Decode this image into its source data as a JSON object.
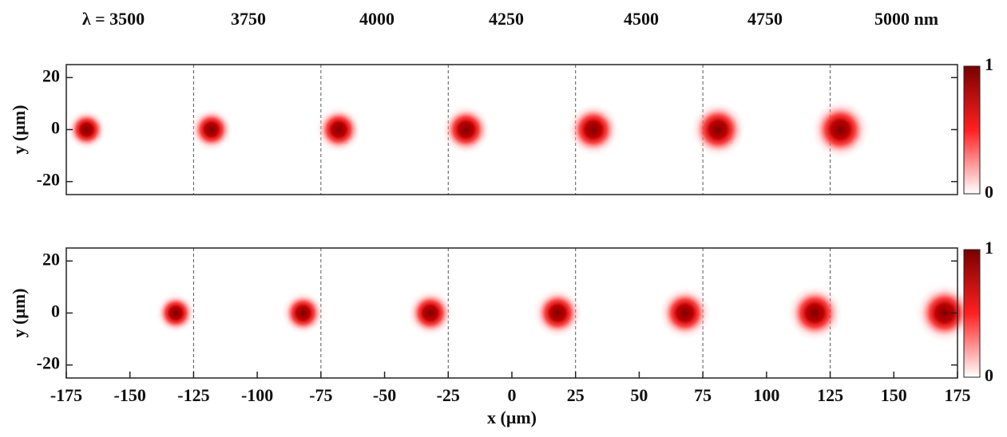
{
  "header": {
    "labels": [
      "λ  =  3500",
      "3750",
      "4000",
      "4250",
      "4500",
      "4750",
      "5000  nm"
    ]
  },
  "chart_data": [
    {
      "type": "scatter",
      "ylabel": "y (μm)",
      "xlim": [
        -175,
        175
      ],
      "ylim": [
        -25,
        25
      ],
      "yticks": [
        -20,
        0,
        20
      ],
      "dividers": [
        -125,
        -75,
        -25,
        25,
        75,
        125
      ],
      "series": [
        {
          "x": [
            -167,
            -118,
            -68,
            -18,
            32,
            81,
            129
          ],
          "y": [
            0,
            0,
            0,
            0,
            0,
            0,
            0
          ],
          "color": "#c00000"
        }
      ],
      "clim": [
        0,
        1
      ],
      "cticks": [
        0,
        1
      ],
      "colormap": [
        "#ffffff",
        "#ff2020",
        "#7a0000"
      ]
    },
    {
      "type": "scatter",
      "ylabel": "y (μm)",
      "xlabel": "x (μm)",
      "xlim": [
        -175,
        175
      ],
      "ylim": [
        -25,
        25
      ],
      "yticks": [
        -20,
        0,
        20
      ],
      "xticks": [
        -175,
        -150,
        -125,
        -100,
        -75,
        -50,
        -25,
        0,
        25,
        50,
        75,
        100,
        125,
        150,
        175
      ],
      "dividers": [
        -125,
        -75,
        -25,
        25,
        75,
        125
      ],
      "series": [
        {
          "x": [
            -132,
            -82,
            -32,
            18,
            68,
            119,
            170
          ],
          "y": [
            0,
            0,
            0,
            0,
            0,
            0,
            0
          ],
          "color": "#c00000"
        }
      ],
      "clim": [
        0,
        1
      ],
      "cticks": [
        0,
        1
      ],
      "colormap": [
        "#ffffff",
        "#ff2020",
        "#7a0000"
      ]
    }
  ]
}
